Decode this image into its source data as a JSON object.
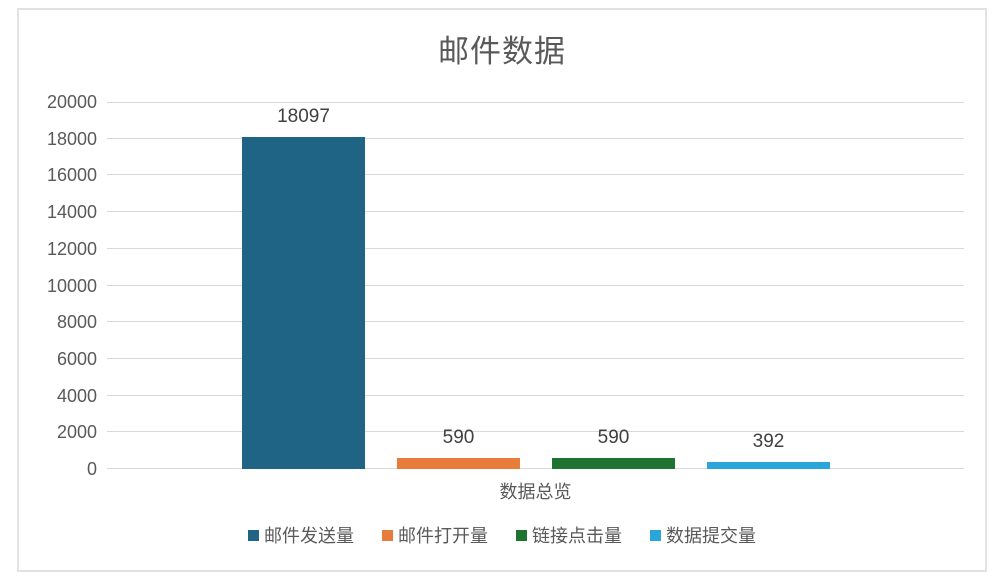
{
  "chart_data": {
    "type": "bar",
    "title": "邮件数据",
    "categories": [
      "数据总览"
    ],
    "series": [
      {
        "name": "邮件发送量",
        "key": "email-sent",
        "values": [
          18097
        ],
        "color": "#1F6385"
      },
      {
        "name": "邮件打开量",
        "key": "email-opened",
        "values": [
          590
        ],
        "color": "#E87D3B"
      },
      {
        "name": "链接点击量",
        "key": "link-clicks",
        "values": [
          590
        ],
        "color": "#1E7330"
      },
      {
        "name": "数据提交量",
        "key": "data-submissions",
        "values": [
          392
        ],
        "color": "#2BA6DB"
      }
    ],
    "xlabel": "数据总览",
    "ylabel": "",
    "ylim": [
      0,
      20000
    ],
    "yticks": [
      0,
      2000,
      4000,
      6000,
      8000,
      10000,
      12000,
      14000,
      16000,
      18000,
      20000
    ],
    "grid": true,
    "gridline_color": "#D9D9D9",
    "data_labels": true,
    "legend_position": "bottom",
    "text_color": "#595959",
    "data_label_color": "#404040",
    "background": "#FFFFFF"
  }
}
